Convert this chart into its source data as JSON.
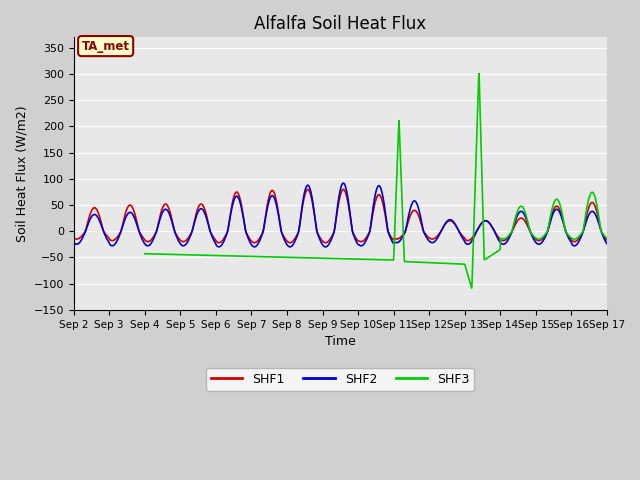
{
  "title": "Alfalfa Soil Heat Flux",
  "xlabel": "Time",
  "ylabel": "Soil Heat Flux (W/m2)",
  "ylim": [
    -150,
    370
  ],
  "yticks": [
    -150,
    -100,
    -50,
    0,
    50,
    100,
    150,
    200,
    250,
    300,
    350
  ],
  "xtick_labels": [
    "Sep 2",
    "Sep 3",
    "Sep 4",
    "Sep 5",
    "Sep 6",
    "Sep 7",
    "Sep 8",
    "Sep 9",
    "Sep 10",
    "Sep 11",
    "Sep 12",
    "Sep 13",
    "Sep 14",
    "Sep 15",
    "Sep 16",
    "Sep 17"
  ],
  "shf1_color": "#cc0000",
  "shf2_color": "#0000cc",
  "shf3_color": "#00cc00",
  "legend_labels": [
    "SHF1",
    "SHF2",
    "SHF3"
  ],
  "annotation_text": "TA_met",
  "fig_bg_color": "#d0d0d0",
  "ax_bg_color": "#e8e8e8",
  "grid_color": "#ffffff",
  "line_width": 1.2,
  "title_fontsize": 12,
  "label_fontsize": 9,
  "tick_fontsize": 8
}
